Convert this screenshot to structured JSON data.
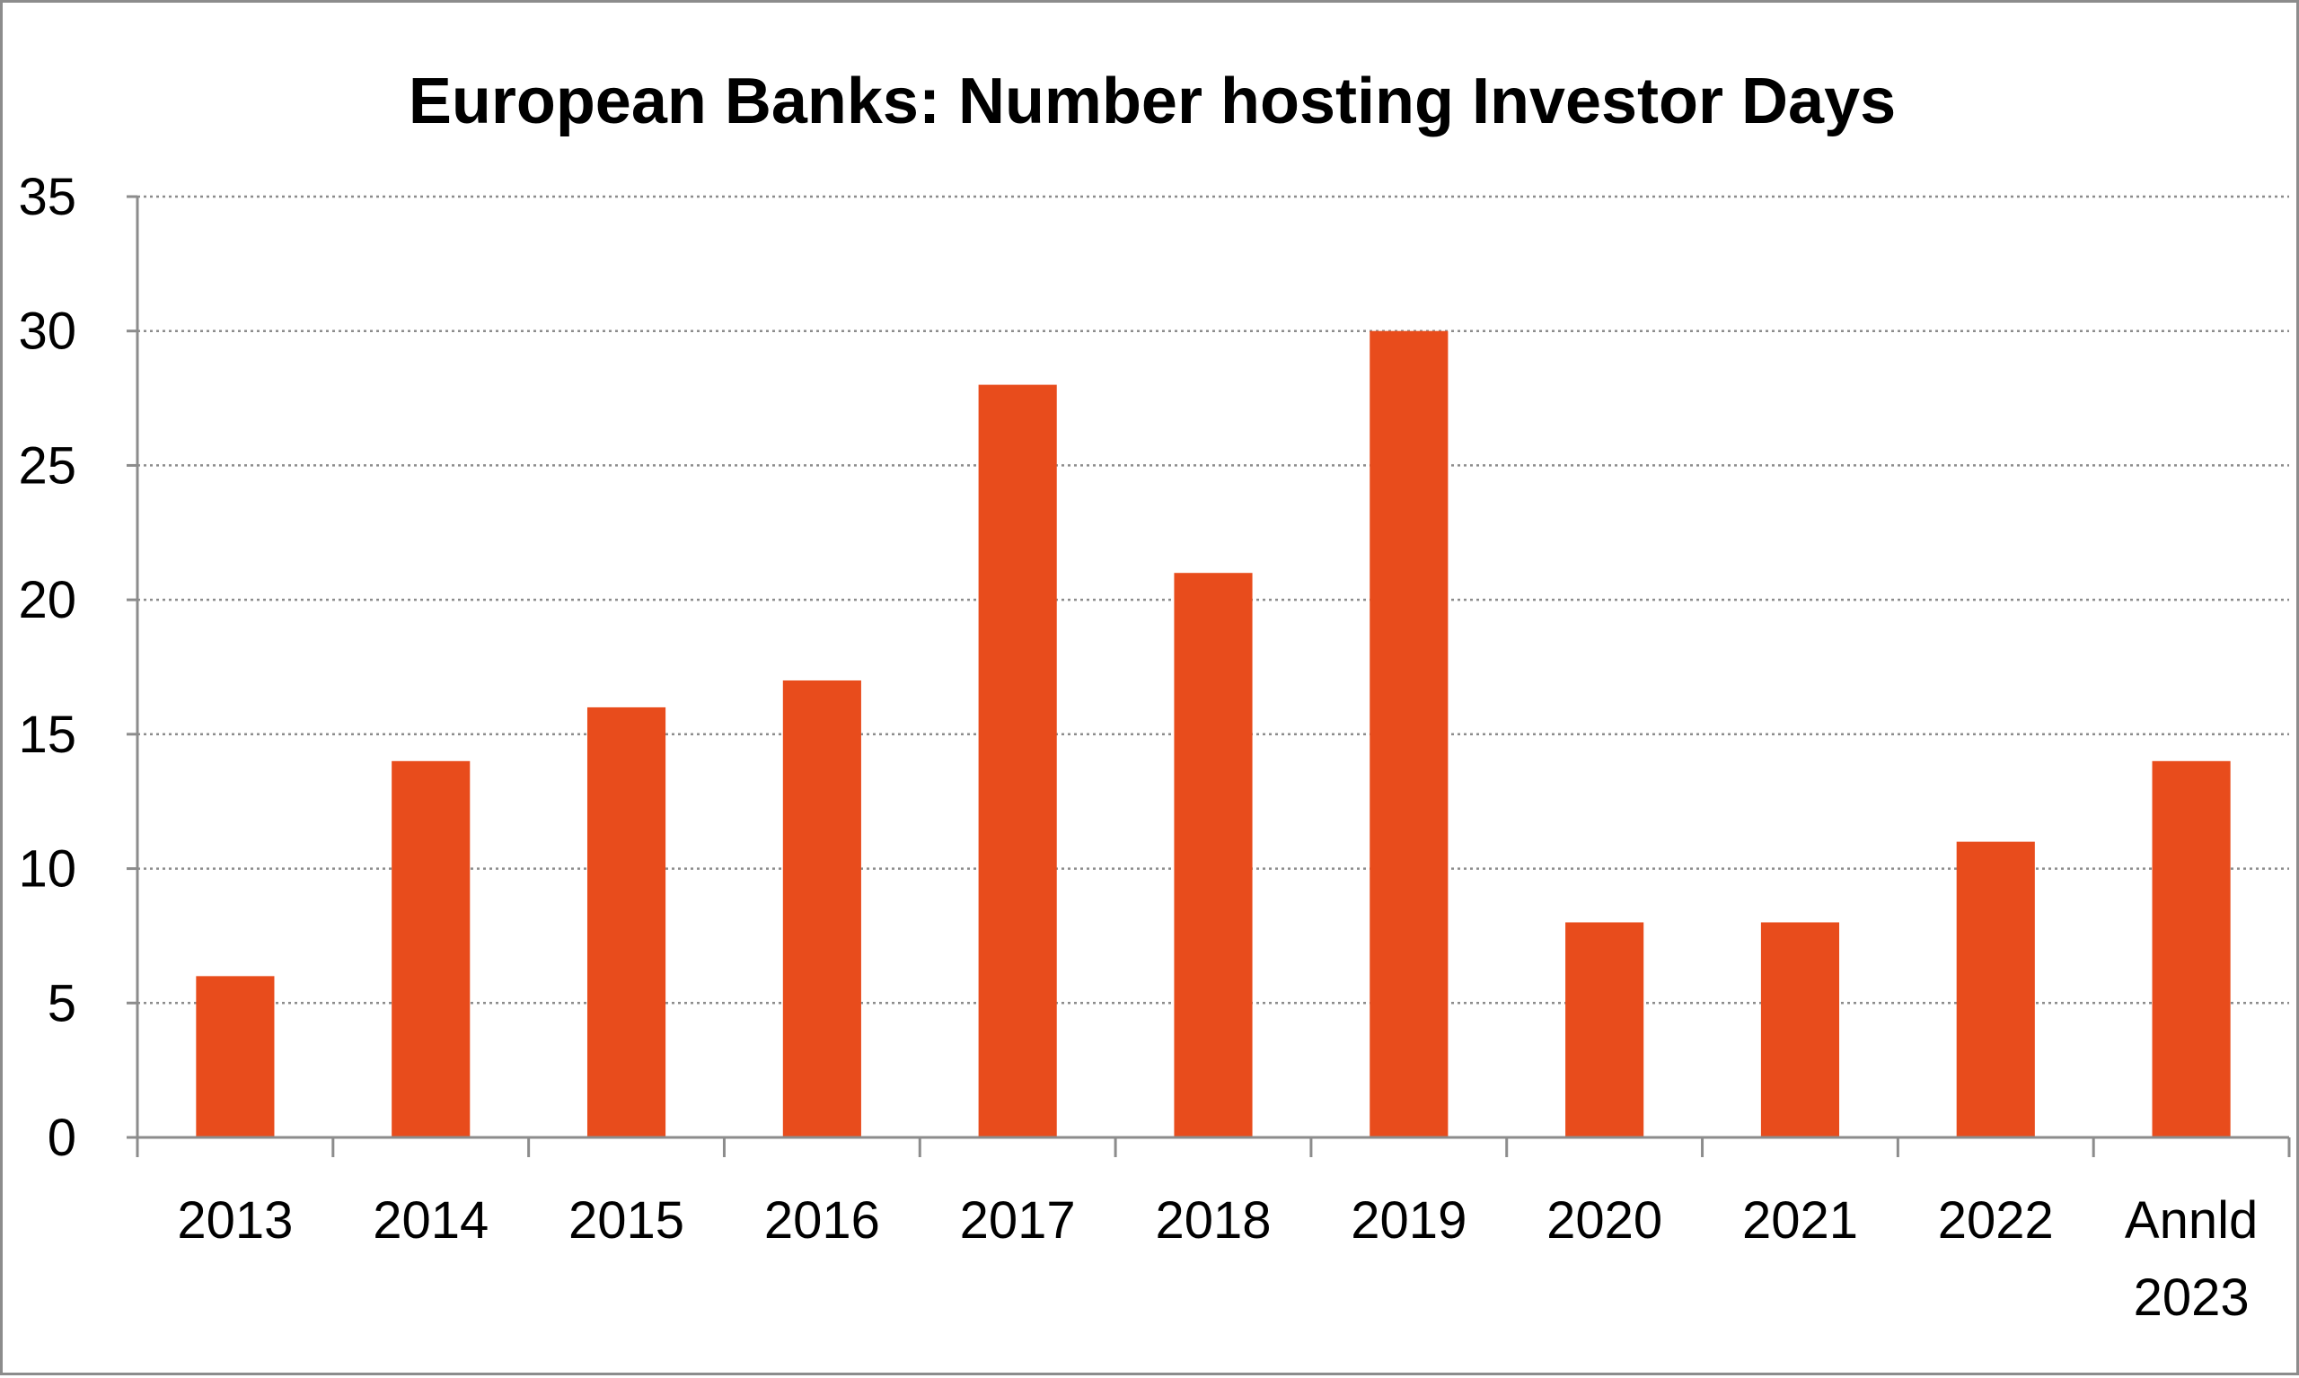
{
  "chart_data": {
    "type": "bar",
    "title": "European Banks: Number hosting Investor Days",
    "xlabel": "",
    "ylabel": "",
    "categories": [
      "2013",
      "2014",
      "2015",
      "2016",
      "2017",
      "2018",
      "2019",
      "2020",
      "2021",
      "2022",
      "Annld 2023"
    ],
    "category_lines": [
      [
        "2013"
      ],
      [
        "2014"
      ],
      [
        "2015"
      ],
      [
        "2016"
      ],
      [
        "2017"
      ],
      [
        "2018"
      ],
      [
        "2019"
      ],
      [
        "2020"
      ],
      [
        "2021"
      ],
      [
        "2022"
      ],
      [
        "Annld",
        "2023"
      ]
    ],
    "values": [
      6,
      14,
      16,
      17,
      28,
      21,
      30,
      8,
      8,
      11,
      14
    ],
    "ylim": [
      0,
      35
    ],
    "yticks": [
      0,
      5,
      10,
      15,
      20,
      25,
      30,
      35
    ],
    "grid": true,
    "legend": "none",
    "bar_color": "#e84c1c",
    "gridline_color": "#8c8c8c",
    "axis_color": "#8c8c8c"
  }
}
